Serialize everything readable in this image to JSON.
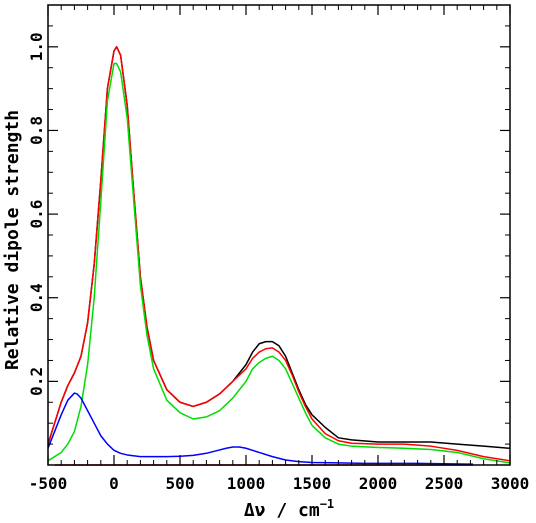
{
  "chart_data": {
    "type": "line",
    "title": "",
    "xlabel": "Δν / cm",
    "xlabel_superscript": "−1",
    "ylabel": "Relative dipole strength",
    "xlim": [
      -500,
      3000
    ],
    "ylim": [
      0,
      1.1
    ],
    "x_ticks": [
      -500,
      0,
      500,
      1000,
      1500,
      2000,
      2500,
      3000
    ],
    "x_tick_labels": [
      "-500",
      "0",
      "500",
      "1000",
      "1500",
      "2000",
      "2500",
      "3000"
    ],
    "x_minor_step": 100,
    "y_ticks": [
      0.2,
      0.4,
      0.6,
      0.8,
      1.0
    ],
    "y_tick_labels": [
      "0.2",
      "0.4",
      "0.6",
      "0.8",
      "1.0"
    ],
    "y_minor_step": 0.05,
    "grid": false,
    "legend": "none",
    "series": [
      {
        "color": "#000000",
        "x": [
          -500,
          -450,
          -400,
          -350,
          -300,
          -250,
          -200,
          -150,
          -100,
          -50,
          0,
          20,
          50,
          100,
          150,
          200,
          250,
          300,
          400,
          500,
          600,
          700,
          800,
          900,
          1000,
          1050,
          1100,
          1150,
          1200,
          1250,
          1300,
          1350,
          1400,
          1450,
          1500,
          1600,
          1700,
          1800,
          2000,
          2200,
          2400,
          2600,
          2800,
          3000
        ],
        "y": [
          0.05,
          0.1,
          0.15,
          0.19,
          0.22,
          0.26,
          0.34,
          0.48,
          0.68,
          0.9,
          0.99,
          1.0,
          0.98,
          0.86,
          0.65,
          0.45,
          0.33,
          0.25,
          0.18,
          0.15,
          0.14,
          0.15,
          0.17,
          0.2,
          0.24,
          0.27,
          0.29,
          0.295,
          0.295,
          0.285,
          0.26,
          0.22,
          0.18,
          0.145,
          0.12,
          0.09,
          0.065,
          0.06,
          0.055,
          0.055,
          0.055,
          0.05,
          0.045,
          0.04
        ]
      },
      {
        "color": "#ff0000",
        "x": [
          -500,
          -450,
          -400,
          -350,
          -300,
          -250,
          -200,
          -150,
          -100,
          -50,
          0,
          20,
          50,
          100,
          150,
          200,
          250,
          300,
          400,
          500,
          600,
          700,
          800,
          900,
          1000,
          1050,
          1100,
          1150,
          1200,
          1250,
          1300,
          1350,
          1400,
          1450,
          1500,
          1600,
          1700,
          1800,
          2000,
          2200,
          2400,
          2600,
          2800,
          3000
        ],
        "y": [
          0.05,
          0.1,
          0.15,
          0.19,
          0.22,
          0.26,
          0.34,
          0.48,
          0.68,
          0.9,
          0.99,
          1.0,
          0.98,
          0.86,
          0.65,
          0.45,
          0.33,
          0.25,
          0.18,
          0.15,
          0.14,
          0.15,
          0.17,
          0.2,
          0.23,
          0.255,
          0.27,
          0.278,
          0.28,
          0.27,
          0.25,
          0.215,
          0.175,
          0.14,
          0.11,
          0.075,
          0.058,
          0.052,
          0.05,
          0.05,
          0.045,
          0.035,
          0.02,
          0.01
        ]
      },
      {
        "color": "#00dd00",
        "x": [
          -500,
          -450,
          -400,
          -350,
          -300,
          -250,
          -200,
          -150,
          -100,
          -50,
          0,
          20,
          50,
          100,
          150,
          200,
          250,
          300,
          400,
          500,
          600,
          700,
          800,
          900,
          1000,
          1050,
          1100,
          1150,
          1200,
          1250,
          1300,
          1350,
          1400,
          1450,
          1500,
          1600,
          1700,
          1800,
          2000,
          2200,
          2400,
          2600,
          2800,
          3000
        ],
        "y": [
          0.01,
          0.02,
          0.03,
          0.05,
          0.08,
          0.14,
          0.24,
          0.4,
          0.63,
          0.87,
          0.96,
          0.96,
          0.94,
          0.83,
          0.63,
          0.43,
          0.31,
          0.23,
          0.155,
          0.125,
          0.11,
          0.115,
          0.13,
          0.16,
          0.2,
          0.23,
          0.245,
          0.255,
          0.26,
          0.25,
          0.23,
          0.195,
          0.16,
          0.125,
          0.095,
          0.065,
          0.05,
          0.045,
          0.042,
          0.04,
          0.037,
          0.03,
          0.015,
          0.005
        ]
      },
      {
        "color": "#0000ff",
        "x": [
          -500,
          -450,
          -400,
          -350,
          -300,
          -280,
          -250,
          -200,
          -150,
          -100,
          -50,
          0,
          50,
          100,
          200,
          300,
          400,
          500,
          600,
          700,
          800,
          850,
          900,
          950,
          1000,
          1100,
          1200,
          1300,
          1400,
          1500,
          1700,
          1900,
          2100,
          2300,
          2500,
          2700,
          2720
        ],
        "y": [
          0.04,
          0.08,
          0.12,
          0.155,
          0.172,
          0.17,
          0.16,
          0.13,
          0.1,
          0.07,
          0.05,
          0.035,
          0.028,
          0.024,
          0.02,
          0.02,
          0.02,
          0.021,
          0.023,
          0.028,
          0.036,
          0.04,
          0.043,
          0.043,
          0.04,
          0.03,
          0.02,
          0.012,
          0.008,
          0.006,
          0.005,
          0.004,
          0.004,
          0.004,
          0.003,
          0.002,
          0.002
        ]
      }
    ],
    "baseline": {
      "color": "#cc0000",
      "y": 0,
      "x": [
        -450,
        2720
      ]
    }
  }
}
